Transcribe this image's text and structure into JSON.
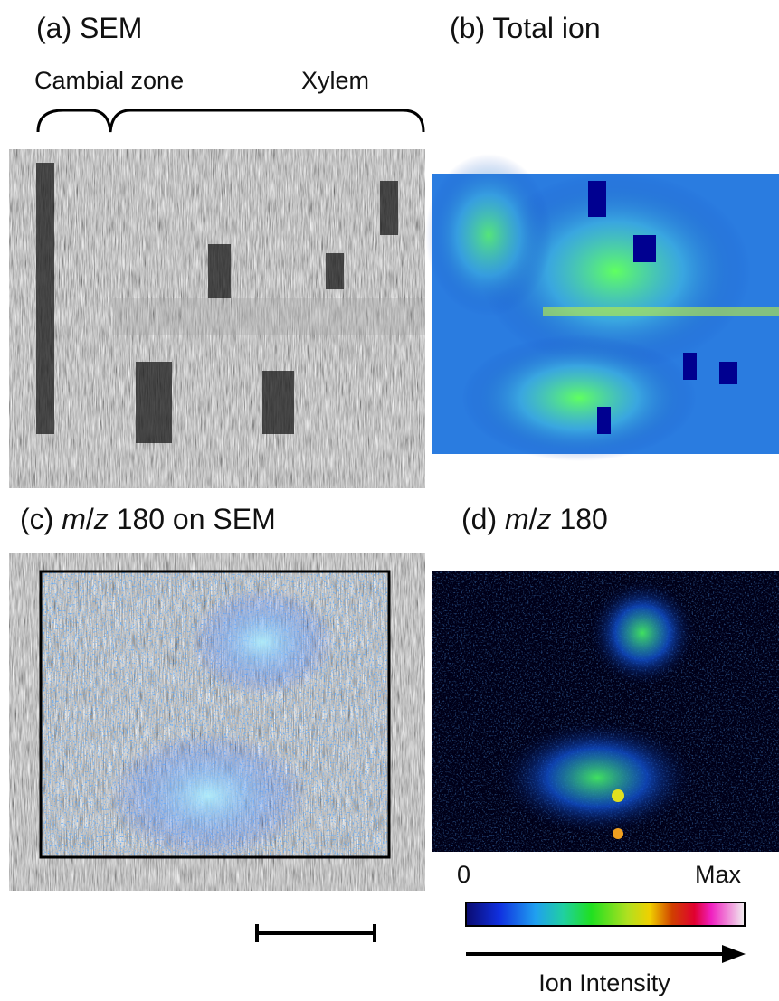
{
  "panels": [
    {
      "title_parts": [
        "(a) SEM"
      ]
    },
    {
      "title_parts": [
        "(b) Total ion"
      ]
    },
    {
      "title_parts": [
        "(c) ",
        "m",
        "/",
        "z",
        " 180 on SEM"
      ]
    },
    {
      "title_parts": [
        "(d) ",
        "m",
        "/",
        "z",
        " 180"
      ]
    }
  ],
  "zones": {
    "left": "Cambial zone",
    "right": "Xylem"
  },
  "colorbar": {
    "min_label": "0",
    "max_label": "Max",
    "axis_label": "Ion Intensity"
  }
}
